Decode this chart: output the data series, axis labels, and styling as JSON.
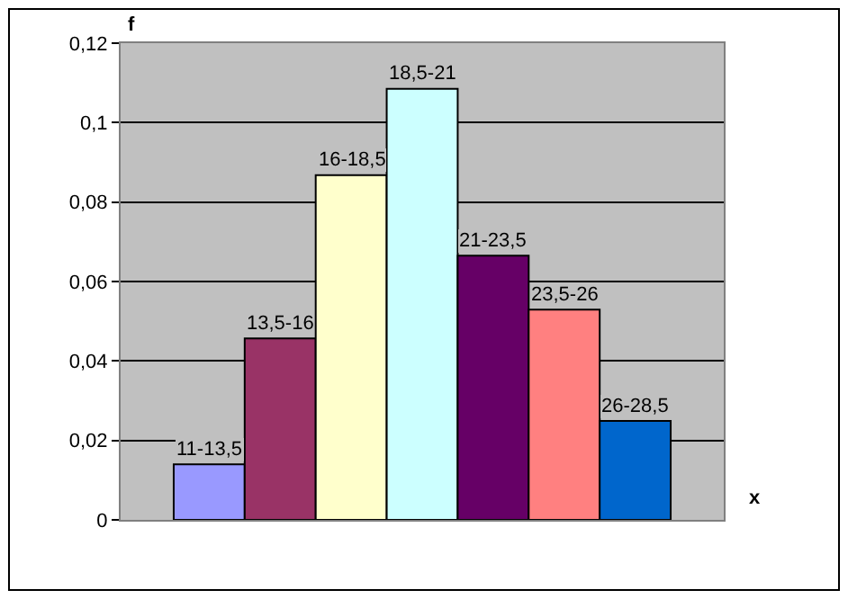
{
  "chart_data": {
    "type": "bar",
    "xlabel": "x",
    "ylabel": "f",
    "categories": [
      null
    ],
    "series": [
      {
        "name": "11-13,5",
        "color": "#9999ff",
        "values": [
          0.014
        ]
      },
      {
        "name": "13,5-16",
        "color": "#993366",
        "values": [
          0.0457
        ]
      },
      {
        "name": "16-18,5",
        "color": "#ffffcc",
        "values": [
          0.0868
        ]
      },
      {
        "name": "18,5-21",
        "color": "#ccffff",
        "values": [
          0.1085
        ]
      },
      {
        "name": "21-23,5",
        "color": "#660066",
        "values": [
          0.0665
        ]
      },
      {
        "name": "23,5-26",
        "color": "#ff8080",
        "values": [
          0.0529
        ]
      },
      {
        "name": "26-28,5",
        "color": "#0066cc",
        "values": [
          0.0249
        ]
      }
    ],
    "ylim": [
      0,
      0.12
    ],
    "yticks": [
      0,
      {
        "value": 0.02,
        "label": "0,02"
      },
      {
        "value": 0.04,
        "label": "0,04"
      },
      {
        "value": 0.06,
        "label": "0,06"
      },
      {
        "value": 0.08,
        "label": "0,08"
      },
      {
        "value": 0.1,
        "label": "0,1"
      },
      {
        "value": 0.12,
        "label": "0,12"
      }
    ],
    "grid": "y",
    "legend": false
  }
}
